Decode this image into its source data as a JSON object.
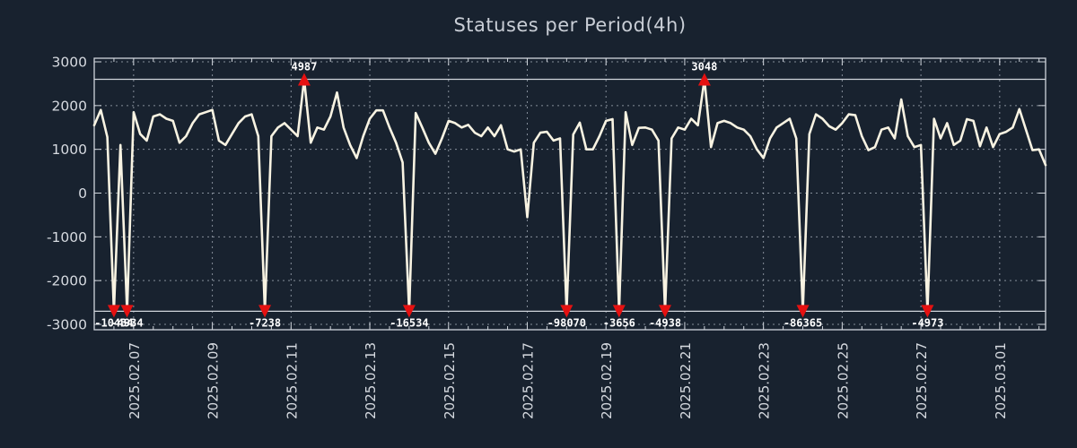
{
  "title": "Statuses per Period(4h)",
  "colors": {
    "background": "#18222f",
    "line": "#f8f3e2",
    "marker": "#e51111",
    "grid": "#aab2bd",
    "frame": "#d0d5dc",
    "tick_text": "#d6dae0",
    "title_text": "#c9ced6",
    "annotation_text": "#ffffff"
  },
  "chart_data": {
    "type": "line",
    "title": "Statuses per Period(4h)",
    "interval_hours": 4,
    "ylim": [
      -3000,
      3000
    ],
    "clip": {
      "top": 2600,
      "bottom": -2700
    },
    "grid": true,
    "legend": false,
    "y_ticks": [
      3000,
      2000,
      1000,
      0,
      -1000,
      -2000,
      -3000
    ],
    "x_tick_labels": [
      "2025.02.07",
      "2025.02.09",
      "2025.02.11",
      "2025.02.13",
      "2025.02.15",
      "2025.02.17",
      "2025.02.19",
      "2025.02.21",
      "2025.02.23",
      "2025.02.25",
      "2025.02.27",
      "2025.03.01"
    ],
    "x_tick_indices": [
      6,
      18,
      30,
      42,
      54,
      66,
      78,
      90,
      102,
      114,
      126,
      138
    ],
    "minor_tick_every": 3,
    "values": [
      1550,
      1900,
      1280,
      -10434,
      1100,
      -4934,
      1850,
      1350,
      1200,
      1750,
      1800,
      1700,
      1650,
      1150,
      1300,
      1600,
      1800,
      1850,
      1900,
      1200,
      1100,
      1350,
      1600,
      1750,
      1800,
      1300,
      -7238,
      1300,
      1500,
      1600,
      1450,
      1300,
      4987,
      1150,
      1500,
      1450,
      1750,
      2300,
      1500,
      1100,
      800,
      1300,
      1700,
      1890,
      1890,
      1500,
      1150,
      700,
      -16534,
      1830,
      1500,
      1150,
      900,
      1250,
      1650,
      1600,
      1500,
      1560,
      1380,
      1300,
      1500,
      1300,
      1550,
      1000,
      950,
      1000,
      -550,
      1150,
      1380,
      1400,
      1200,
      1250,
      -98070,
      1340,
      1610,
      1000,
      1000,
      1300,
      1650,
      1690,
      -3656,
      1850,
      1100,
      1490,
      1500,
      1450,
      1200,
      -4938,
      1250,
      1500,
      1450,
      1700,
      1550,
      3048,
      1050,
      1600,
      1650,
      1600,
      1500,
      1450,
      1300,
      1000,
      800,
      1250,
      1500,
      1600,
      1700,
      1250,
      -86365,
      1350,
      1800,
      1700,
      1530,
      1450,
      1600,
      1800,
      1780,
      1300,
      980,
      1050,
      1450,
      1500,
      1250,
      2140,
      1300,
      1050,
      1100,
      -4973,
      1700,
      1250,
      1600,
      1100,
      1200,
      1690,
      1650,
      1070,
      1500,
      1050,
      1350,
      1400,
      1500,
      1920,
      1450,
      980,
      1000,
      640
    ],
    "annotations": [
      {
        "index": 3,
        "value": -10434,
        "label": "-10434",
        "position": "bottom"
      },
      {
        "index": 5,
        "value": -4934,
        "label": "-4934",
        "position": "bottom"
      },
      {
        "index": 26,
        "value": -7238,
        "label": "-7238",
        "position": "bottom"
      },
      {
        "index": 32,
        "value": 4987,
        "label": "4987",
        "position": "top"
      },
      {
        "index": 48,
        "value": -16534,
        "label": "-16534",
        "position": "bottom"
      },
      {
        "index": 72,
        "value": -98070,
        "label": "-98070",
        "position": "bottom"
      },
      {
        "index": 80,
        "value": -3656,
        "label": "-3656",
        "position": "bottom"
      },
      {
        "index": 87,
        "value": -4938,
        "label": "-4938",
        "position": "bottom"
      },
      {
        "index": 93,
        "value": 3048,
        "label": "3048",
        "position": "top"
      },
      {
        "index": 108,
        "value": -86365,
        "label": "-86365",
        "position": "bottom"
      },
      {
        "index": 127,
        "value": -4973,
        "label": "-4973",
        "position": "bottom"
      }
    ]
  }
}
